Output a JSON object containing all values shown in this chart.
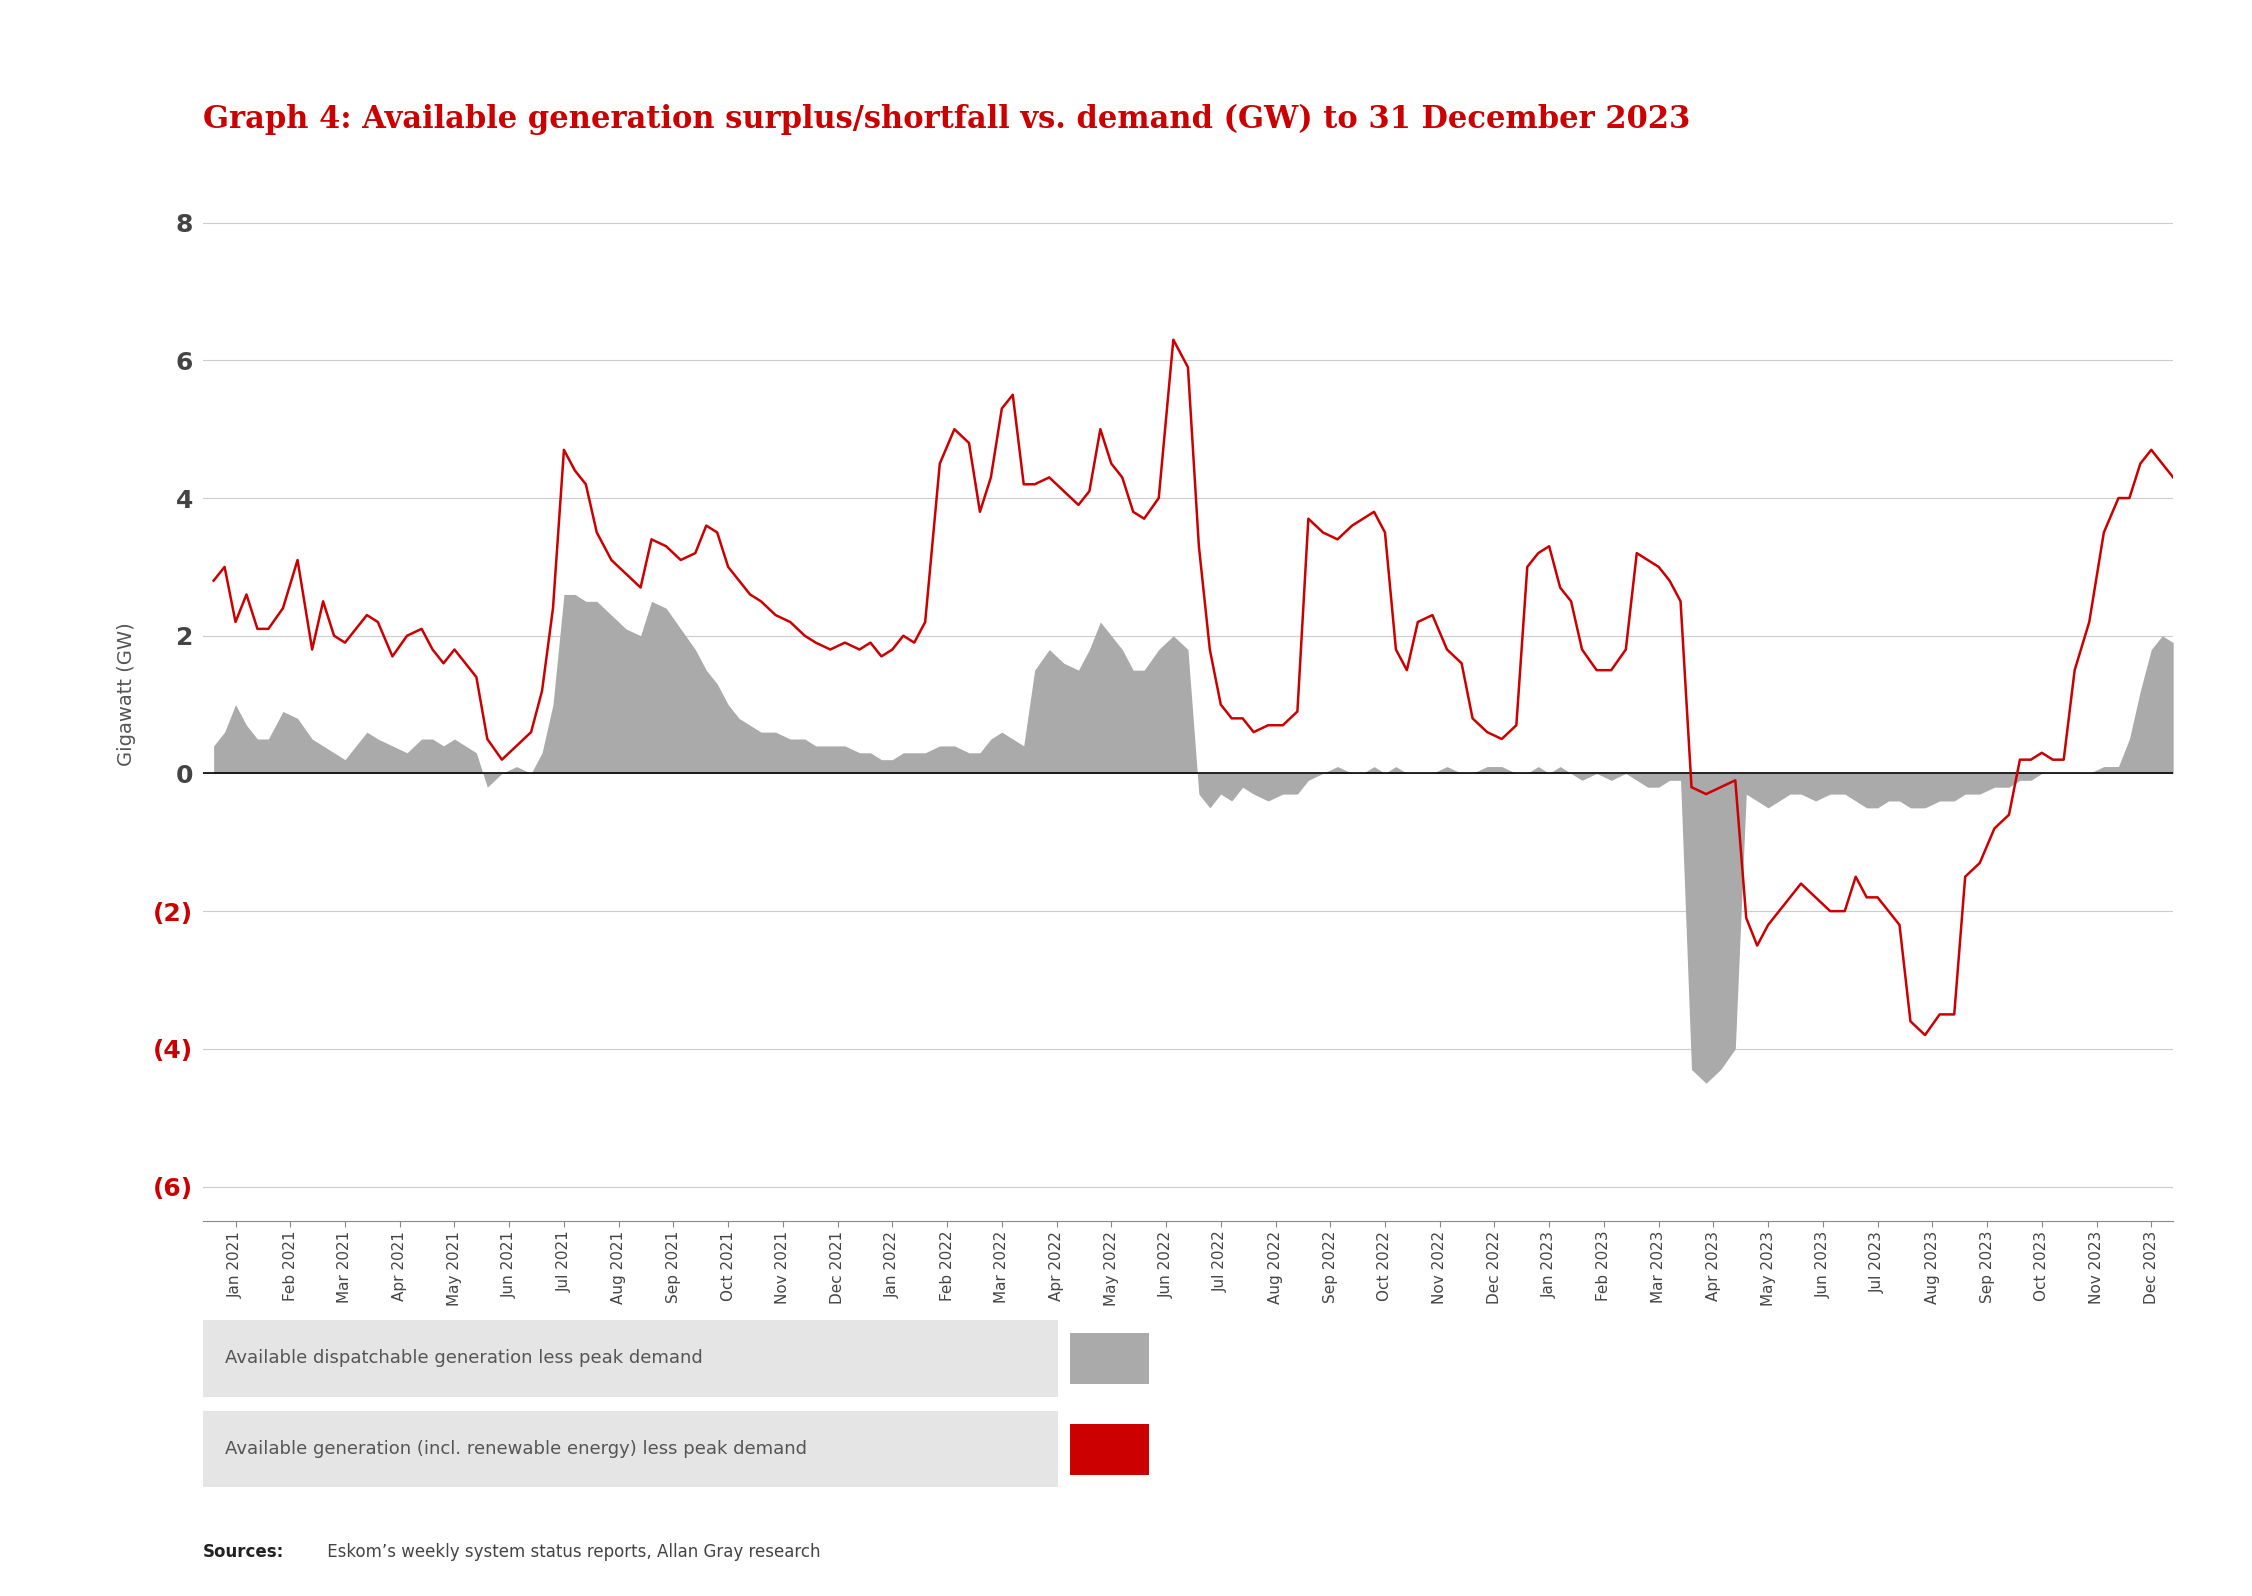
{
  "title": "Graph 4: Available generation surplus/shortfall vs. demand (GW) to 31 December 2023",
  "title_color": "#cc0000",
  "ylabel": "Gigawatt (GW)",
  "ylabel_color": "#555555",
  "background_color": "#ffffff",
  "ylim": [
    -6.5,
    8.8
  ],
  "yticks": [
    -6,
    -4,
    -2,
    0,
    2,
    4,
    6,
    8
  ],
  "grid_color": "#cccccc",
  "area_color": "#aaaaaa",
  "line_color": "#cc0000",
  "sources_label": "Sources:",
  "sources_rest": " Eskom’s weekly system status reports, Allan Gray research",
  "legend1": "Available dispatchable generation less peak demand",
  "legend2": "Available generation (incl. renewable energy) less peak demand",
  "x_labels": [
    "Jan 2021",
    "Feb 2021",
    "Mar 2021",
    "Apr 2021",
    "May 2021",
    "Jun 2021",
    "Jul 2021",
    "Aug 2021",
    "Sep 2021",
    "Oct 2021",
    "Nov 2021",
    "Dec 2021",
    "Jan 2022",
    "Feb 2022",
    "Mar 2022",
    "Apr 2022",
    "May 2022",
    "Jun 2022",
    "Jul 2022",
    "Aug 2022",
    "Sep 2022",
    "Oct 2022",
    "Nov 2022",
    "Dec 2022",
    "Jan 2023",
    "Feb 2023",
    "Mar 2023",
    "Apr 2023",
    "May 2023",
    "Jun 2023",
    "Jul 2023",
    "Aug 2023",
    "Sep 2023",
    "Oct 2023",
    "Nov 2023",
    "Dec 2023"
  ]
}
